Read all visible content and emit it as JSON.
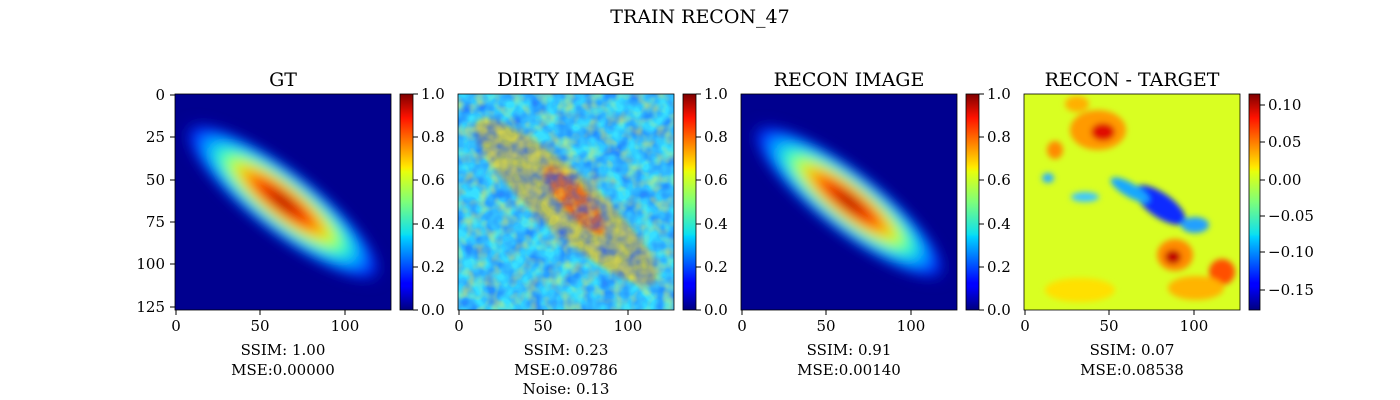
{
  "figure": {
    "suptitle": "TRAIN RECON_47"
  },
  "chart_data": [
    {
      "type": "heatmap",
      "title": "GT",
      "description": "Smooth elongated elliptical blob oriented from top-left to bottom-right; peak near (65,65).",
      "x_ticks": [
        0,
        50,
        100
      ],
      "y_ticks": [
        0,
        25,
        50,
        75,
        100,
        125
      ],
      "x_range": [
        0,
        127
      ],
      "y_range": [
        0,
        127
      ],
      "colorbar": {
        "range": [
          0.0,
          1.0
        ],
        "ticks": [
          "0.0",
          "0.2",
          "0.4",
          "0.6",
          "0.8",
          "1.0"
        ]
      },
      "colormap": "jet",
      "caption": [
        "SSIM: 1.00",
        "MSE:0.00000"
      ]
    },
    {
      "type": "heatmap",
      "title": "DIRTY IMAGE",
      "description": "Noisy version of the diagonal blob with speckle pattern.",
      "x_ticks": [
        0,
        50,
        100
      ],
      "x_range": [
        0,
        127
      ],
      "y_range": [
        0,
        127
      ],
      "colorbar": {
        "range": [
          0.0,
          1.0
        ],
        "ticks": [
          "0.0",
          "0.2",
          "0.4",
          "0.6",
          "0.8",
          "1.0"
        ]
      },
      "colormap": "jet",
      "caption": [
        "SSIM: 0.23",
        "MSE:0.09786",
        "Noise: 0.13"
      ]
    },
    {
      "type": "heatmap",
      "title": "RECON IMAGE",
      "description": "Reconstruction closely resembling GT blob.",
      "x_ticks": [
        0,
        50,
        100
      ],
      "x_range": [
        0,
        127
      ],
      "y_range": [
        0,
        127
      ],
      "colorbar": {
        "range": [
          0.0,
          1.0
        ],
        "ticks": [
          "0.0",
          "0.2",
          "0.4",
          "0.6",
          "0.8",
          "1.0"
        ]
      },
      "colormap": "jet",
      "caption": [
        "SSIM: 0.91",
        "MSE:0.00140"
      ]
    },
    {
      "type": "heatmap",
      "title": "RECON - TARGET",
      "description": "Residual map mostly near zero with positive patches near top-left and bottom-right and negative band along the diagonal.",
      "x_ticks": [
        0,
        50,
        100
      ],
      "x_range": [
        0,
        127
      ],
      "y_range": [
        0,
        127
      ],
      "colorbar": {
        "range": [
          -0.18,
          0.12
        ],
        "ticks": [
          "0.10",
          "0.05",
          "0.00",
          "−0.05",
          "−0.10",
          "−0.15"
        ]
      },
      "colormap": "jet",
      "caption": [
        "SSIM: 0.07",
        "MSE:0.08538"
      ]
    }
  ]
}
